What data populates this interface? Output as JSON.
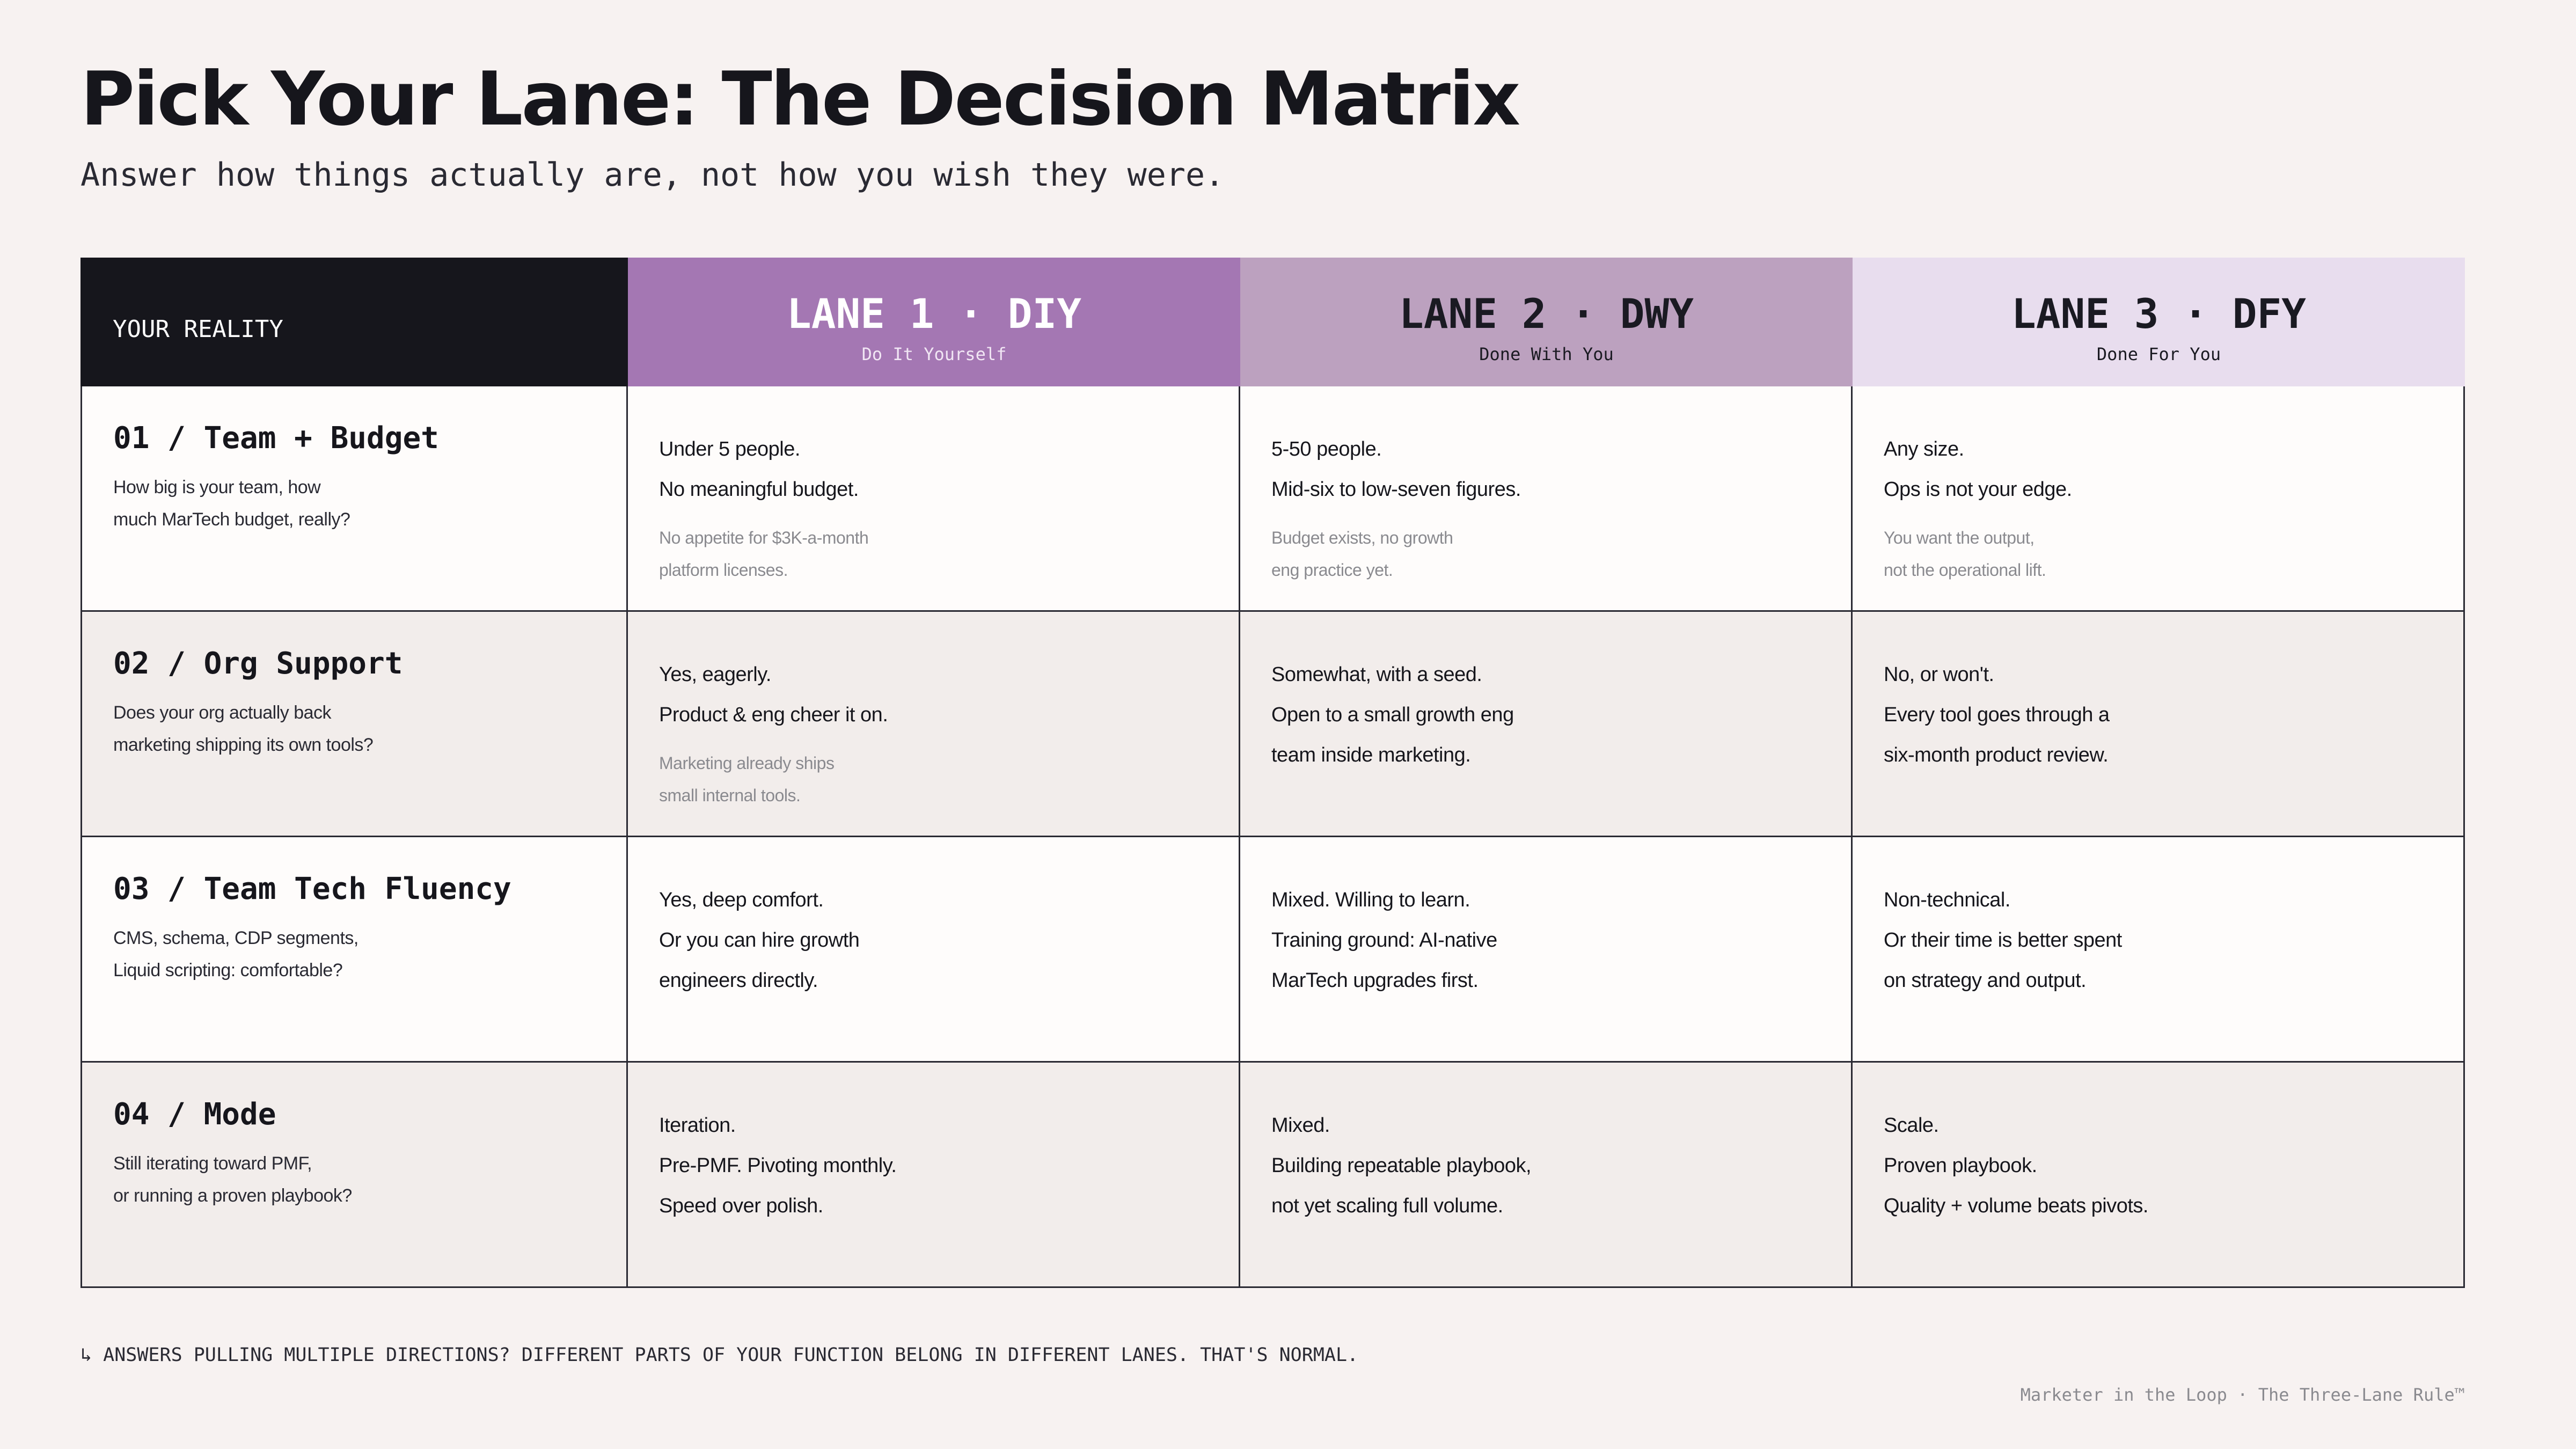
{
  "title": "Pick Your Lane: The Decision Matrix",
  "subtitle": "Answer how things actually are, not how you wish they were.",
  "header": {
    "reality_label": "YOUR REALITY",
    "lanes": [
      {
        "title": "LANE 1 · DIY",
        "subtitle": "Do It Yourself"
      },
      {
        "title": "LANE 2 · DWY",
        "subtitle": "Done With You"
      },
      {
        "title": "LANE 3 · DFY",
        "subtitle": "Done For You"
      }
    ]
  },
  "rows": [
    {
      "title": "01 / Team + Budget",
      "desc": [
        "How big is your team, how",
        "much MarTech budget, really?"
      ],
      "cells": [
        {
          "lines": [
            "Under 5 people.",
            "No meaningful budget."
          ],
          "note": [
            "No appetite for $3K-a-month",
            "platform licenses."
          ]
        },
        {
          "lines": [
            "5-50 people.",
            "Mid-six to low-seven figures."
          ],
          "note": [
            "Budget exists, no growth",
            "eng practice yet."
          ]
        },
        {
          "lines": [
            "Any size.",
            "Ops is not your edge."
          ],
          "note": [
            "You want the output,",
            "not the operational lift."
          ]
        }
      ]
    },
    {
      "title": "02 / Org Support",
      "desc": [
        "Does your org actually back",
        "marketing shipping its own tools?"
      ],
      "cells": [
        {
          "lines": [
            "Yes, eagerly.",
            "Product & eng cheer it on."
          ],
          "note": [
            "Marketing already ships",
            "small internal tools."
          ]
        },
        {
          "lines": [
            "Somewhat, with a seed.",
            "Open to a small growth eng",
            "team inside marketing."
          ],
          "note": []
        },
        {
          "lines": [
            "No, or won't.",
            "Every tool goes through a",
            "six-month product review."
          ],
          "note": []
        }
      ]
    },
    {
      "title": "03 / Team Tech Fluency",
      "desc": [
        "CMS, schema, CDP segments,",
        "Liquid scripting: comfortable?"
      ],
      "cells": [
        {
          "lines": [
            "Yes, deep comfort.",
            "Or you can hire growth",
            "engineers directly."
          ],
          "note": []
        },
        {
          "lines": [
            "Mixed. Willing to learn.",
            "Training ground: AI-native",
            "MarTech upgrades first."
          ],
          "note": []
        },
        {
          "lines": [
            "Non-technical.",
            "Or their time is better spent",
            "on strategy and output."
          ],
          "note": []
        }
      ]
    },
    {
      "title": "04 / Mode",
      "desc": [
        "Still iterating toward PMF,",
        "or running a proven playbook?"
      ],
      "cells": [
        {
          "lines": [
            "Iteration.",
            "Pre-PMF. Pivoting monthly.",
            "Speed over polish."
          ],
          "note": []
        },
        {
          "lines": [
            "Mixed.",
            "Building repeatable playbook,",
            "not yet scaling full volume."
          ],
          "note": []
        },
        {
          "lines": [
            "Scale.",
            "Proven playbook.",
            "Quality + volume beats pivots."
          ],
          "note": []
        }
      ]
    }
  ],
  "footnote": "↳ ANSWERS PULLING MULTIPLE DIRECTIONS? DIFFERENT PARTS OF YOUR FUNCTION BELONG IN DIFFERENT LANES. THAT'S NORMAL.",
  "credit": "Marketer in the Loop · The Three-Lane Rule™",
  "colors": {
    "background": "#f7f2f1",
    "reality_header": "#16161c",
    "lane1": "#a477b3",
    "lane2": "#bca1bf",
    "lane3": "#e8ddee"
  }
}
